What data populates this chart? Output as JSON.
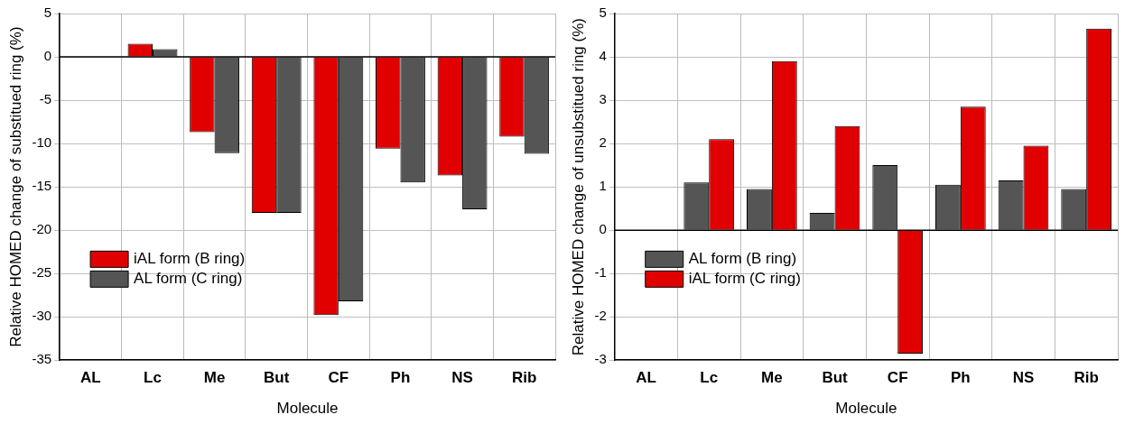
{
  "chart_data": [
    {
      "type": "bar",
      "categories": [
        "AL",
        "Lc",
        "Me",
        "But",
        "CF",
        "Ph",
        "NS",
        "Rib"
      ],
      "xlabel": "Molecule",
      "ylabel": "Relative HOMED change of substitued ring (%)",
      "series": [
        {
          "name": "iAL form (B ring)",
          "color": "#e00000",
          "values": [
            0,
            1.5,
            -8.7,
            -18,
            -29.8,
            -10.6,
            -13.7,
            -9.2
          ]
        },
        {
          "name": "AL form (C ring)",
          "color": "#555555",
          "values": [
            0,
            0.9,
            -11.1,
            -18,
            -28.2,
            -14.5,
            -17.6,
            -11.2
          ]
        }
      ],
      "ylim": [
        -35,
        5
      ],
      "yticks": [
        -35,
        -30,
        -25,
        -20,
        -15,
        -10,
        -5,
        0,
        5
      ],
      "grid": true,
      "legend": "bottom left"
    },
    {
      "type": "bar",
      "categories": [
        "AL",
        "Lc",
        "Me",
        "But",
        "CF",
        "Ph",
        "NS",
        "Rib"
      ],
      "xlabel": "Molecule",
      "ylabel": "Relative HOMED change of unsubstitued ring (%)",
      "series": [
        {
          "name": "AL form (B ring)",
          "color": "#555555",
          "values": [
            0,
            1.1,
            0.95,
            0.4,
            1.5,
            1.05,
            1.15,
            0.95
          ]
        },
        {
          "name": "iAL form (C ring)",
          "color": "#e00000",
          "values": [
            0,
            2.1,
            3.9,
            2.4,
            -2.85,
            2.85,
            1.95,
            4.65
          ]
        }
      ],
      "ylim": [
        -3,
        5
      ],
      "yticks": [
        -3,
        -2,
        -1,
        0,
        1,
        2,
        3,
        4,
        5
      ],
      "grid": true,
      "legend": "bottom left"
    }
  ]
}
